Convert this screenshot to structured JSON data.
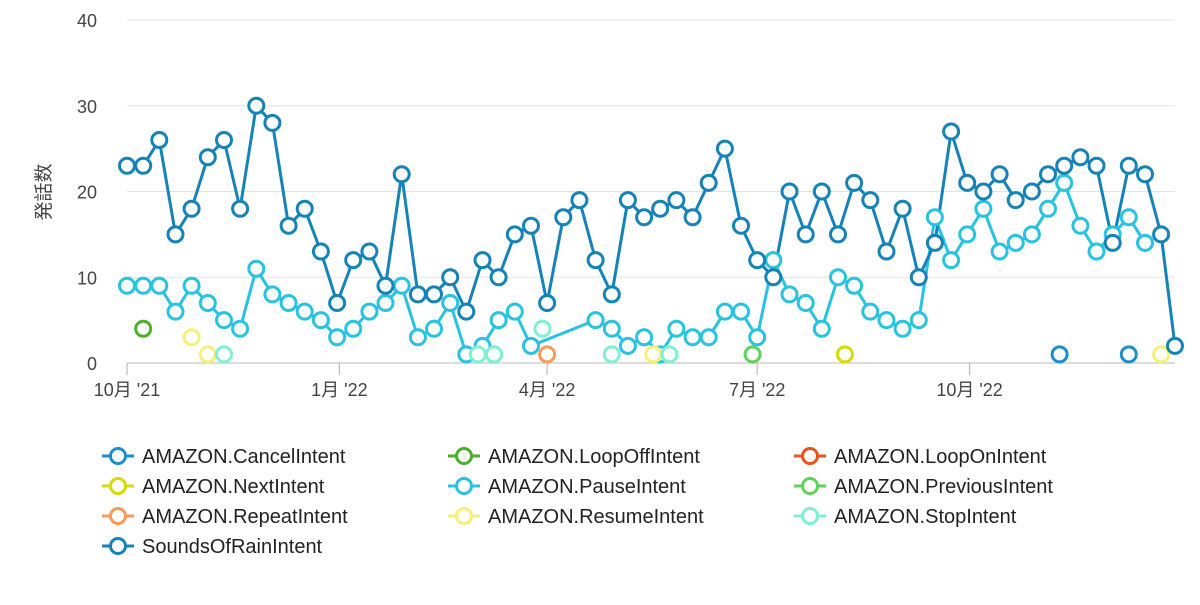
{
  "chart_data": {
    "type": "line",
    "ylabel": "発話数",
    "ylim": [
      0,
      40
    ],
    "yticks": [
      0,
      10,
      20,
      30,
      40
    ],
    "xlim": [
      "2021-10-01",
      "2022-12-29"
    ],
    "xticks": [
      {
        "label": "10月 '21",
        "date": "2021-10-01"
      },
      {
        "label": "1月 '22",
        "date": "2022-01-01"
      },
      {
        "label": "4月 '22",
        "date": "2022-04-01"
      },
      {
        "label": "7月 '22",
        "date": "2022-07-01"
      },
      {
        "label": "10月 '22",
        "date": "2022-10-01"
      }
    ],
    "grid": true,
    "legend_position": "bottom",
    "series": [
      {
        "name": "AMAZON.CancelIntent",
        "color": "#1a8fc9",
        "line": false,
        "points": [
          [
            "2022-03-09",
            1
          ],
          [
            "2022-11-09",
            1
          ],
          [
            "2022-12-09",
            1
          ]
        ]
      },
      {
        "name": "AMAZON.LoopOffIntent",
        "color": "#4caf29",
        "line": false,
        "points": [
          [
            "2021-10-08",
            4
          ]
        ]
      },
      {
        "name": "AMAZON.LoopOnIntent",
        "color": "#e8541e",
        "line": false,
        "points": []
      },
      {
        "name": "AMAZON.NextIntent",
        "color": "#d6d90a",
        "line": false,
        "points": [
          [
            "2022-08-08",
            1
          ]
        ]
      },
      {
        "name": "AMAZON.PauseIntent",
        "color": "#27c3e0",
        "line": true,
        "points": [
          [
            "2021-10-01",
            9
          ],
          [
            "2021-10-08",
            9
          ],
          [
            "2021-10-15",
            9
          ],
          [
            "2021-10-22",
            6
          ],
          [
            "2021-10-29",
            9
          ],
          [
            "2021-11-05",
            7
          ],
          [
            "2021-11-12",
            5
          ],
          [
            "2021-11-19",
            4
          ],
          [
            "2021-11-26",
            11
          ],
          [
            "2021-12-03",
            8
          ],
          [
            "2021-12-10",
            7
          ],
          [
            "2021-12-17",
            6
          ],
          [
            "2021-12-24",
            5
          ],
          [
            "2021-12-31",
            3
          ],
          [
            "2022-01-07",
            4
          ],
          [
            "2022-01-14",
            6
          ],
          [
            "2022-01-21",
            7
          ],
          [
            "2022-01-28",
            9
          ],
          [
            "2022-02-04",
            3
          ],
          [
            "2022-02-11",
            4
          ],
          [
            "2022-02-18",
            7
          ],
          [
            "2022-02-25",
            1
          ],
          [
            "2022-03-04",
            2
          ],
          [
            "2022-03-11",
            5
          ],
          [
            "2022-03-18",
            6
          ],
          [
            "2022-03-25",
            2
          ],
          [
            "2022-04-22",
            5
          ],
          [
            "2022-04-29",
            4
          ],
          [
            "2022-05-06",
            2
          ],
          [
            "2022-05-13",
            3
          ],
          [
            "2022-05-20",
            1
          ],
          [
            "2022-05-27",
            4
          ],
          [
            "2022-06-03",
            3
          ],
          [
            "2022-06-10",
            3
          ],
          [
            "2022-06-17",
            6
          ],
          [
            "2022-06-24",
            6
          ],
          [
            "2022-07-01",
            3
          ],
          [
            "2022-07-08",
            12
          ],
          [
            "2022-07-15",
            8
          ],
          [
            "2022-07-22",
            7
          ],
          [
            "2022-07-29",
            4
          ],
          [
            "2022-08-05",
            10
          ],
          [
            "2022-08-12",
            9
          ],
          [
            "2022-08-19",
            6
          ],
          [
            "2022-08-26",
            5
          ],
          [
            "2022-09-02",
            4
          ],
          [
            "2022-09-09",
            5
          ],
          [
            "2022-09-16",
            17
          ],
          [
            "2022-09-23",
            12
          ],
          [
            "2022-09-30",
            15
          ],
          [
            "2022-10-07",
            18
          ],
          [
            "2022-10-14",
            13
          ],
          [
            "2022-10-21",
            14
          ],
          [
            "2022-10-28",
            15
          ],
          [
            "2022-11-04",
            18
          ],
          [
            "2022-11-11",
            21
          ],
          [
            "2022-11-18",
            16
          ],
          [
            "2022-11-25",
            13
          ],
          [
            "2022-12-02",
            15
          ],
          [
            "2022-12-09",
            17
          ],
          [
            "2022-12-16",
            14
          ]
        ]
      },
      {
        "name": "AMAZON.PreviousIntent",
        "color": "#5fd35b",
        "line": false,
        "points": [
          [
            "2022-06-29",
            1
          ]
        ]
      },
      {
        "name": "AMAZON.RepeatIntent",
        "color": "#f79a5a",
        "line": false,
        "points": [
          [
            "2022-04-01",
            1
          ]
        ]
      },
      {
        "name": "AMAZON.ResumeIntent",
        "color": "#f4f17a",
        "line": false,
        "points": [
          [
            "2021-10-29",
            3
          ],
          [
            "2021-11-05",
            1
          ],
          [
            "2022-05-17",
            1
          ],
          [
            "2022-12-23",
            1
          ]
        ]
      },
      {
        "name": "AMAZON.StopIntent",
        "color": "#7ff0d2",
        "line": false,
        "points": [
          [
            "2021-11-12",
            1
          ],
          [
            "2022-03-02",
            1
          ],
          [
            "2022-03-09",
            1
          ],
          [
            "2022-03-30",
            4
          ],
          [
            "2022-04-29",
            1
          ],
          [
            "2022-05-24",
            1
          ]
        ]
      },
      {
        "name": "SoundsOfRainIntent",
        "color": "#1583b8",
        "line": true,
        "points": [
          [
            "2021-10-01",
            23
          ],
          [
            "2021-10-08",
            23
          ],
          [
            "2021-10-15",
            26
          ],
          [
            "2021-10-22",
            15
          ],
          [
            "2021-10-29",
            18
          ],
          [
            "2021-11-05",
            24
          ],
          [
            "2021-11-12",
            26
          ],
          [
            "2021-11-19",
            18
          ],
          [
            "2021-11-26",
            30
          ],
          [
            "2021-12-03",
            28
          ],
          [
            "2021-12-10",
            16
          ],
          [
            "2021-12-17",
            18
          ],
          [
            "2021-12-24",
            13
          ],
          [
            "2021-12-31",
            7
          ],
          [
            "2022-01-07",
            12
          ],
          [
            "2022-01-14",
            13
          ],
          [
            "2022-01-21",
            9
          ],
          [
            "2022-01-28",
            22
          ],
          [
            "2022-02-04",
            8
          ],
          [
            "2022-02-11",
            8
          ],
          [
            "2022-02-18",
            10
          ],
          [
            "2022-02-25",
            6
          ],
          [
            "2022-03-04",
            12
          ],
          [
            "2022-03-11",
            10
          ],
          [
            "2022-03-18",
            15
          ],
          [
            "2022-03-25",
            16
          ],
          [
            "2022-04-01",
            7
          ],
          [
            "2022-04-08",
            17
          ],
          [
            "2022-04-15",
            19
          ],
          [
            "2022-04-22",
            12
          ],
          [
            "2022-04-29",
            8
          ],
          [
            "2022-05-06",
            19
          ],
          [
            "2022-05-13",
            17
          ],
          [
            "2022-05-20",
            18
          ],
          [
            "2022-05-27",
            19
          ],
          [
            "2022-06-03",
            17
          ],
          [
            "2022-06-10",
            21
          ],
          [
            "2022-06-17",
            25
          ],
          [
            "2022-06-24",
            16
          ],
          [
            "2022-07-01",
            12
          ],
          [
            "2022-07-08",
            10
          ],
          [
            "2022-07-15",
            20
          ],
          [
            "2022-07-22",
            15
          ],
          [
            "2022-07-29",
            20
          ],
          [
            "2022-08-05",
            15
          ],
          [
            "2022-08-12",
            21
          ],
          [
            "2022-08-19",
            19
          ],
          [
            "2022-08-26",
            13
          ],
          [
            "2022-09-02",
            18
          ],
          [
            "2022-09-09",
            10
          ],
          [
            "2022-09-16",
            14
          ],
          [
            "2022-09-23",
            27
          ],
          [
            "2022-09-30",
            21
          ],
          [
            "2022-10-07",
            20
          ],
          [
            "2022-10-14",
            22
          ],
          [
            "2022-10-21",
            19
          ],
          [
            "2022-10-28",
            20
          ],
          [
            "2022-11-04",
            22
          ],
          [
            "2022-11-11",
            23
          ],
          [
            "2022-11-18",
            24
          ],
          [
            "2022-11-25",
            23
          ],
          [
            "2022-12-02",
            14
          ],
          [
            "2022-12-09",
            23
          ],
          [
            "2022-12-16",
            22
          ],
          [
            "2022-12-23",
            15
          ],
          [
            "2022-12-29",
            2
          ]
        ]
      }
    ]
  }
}
